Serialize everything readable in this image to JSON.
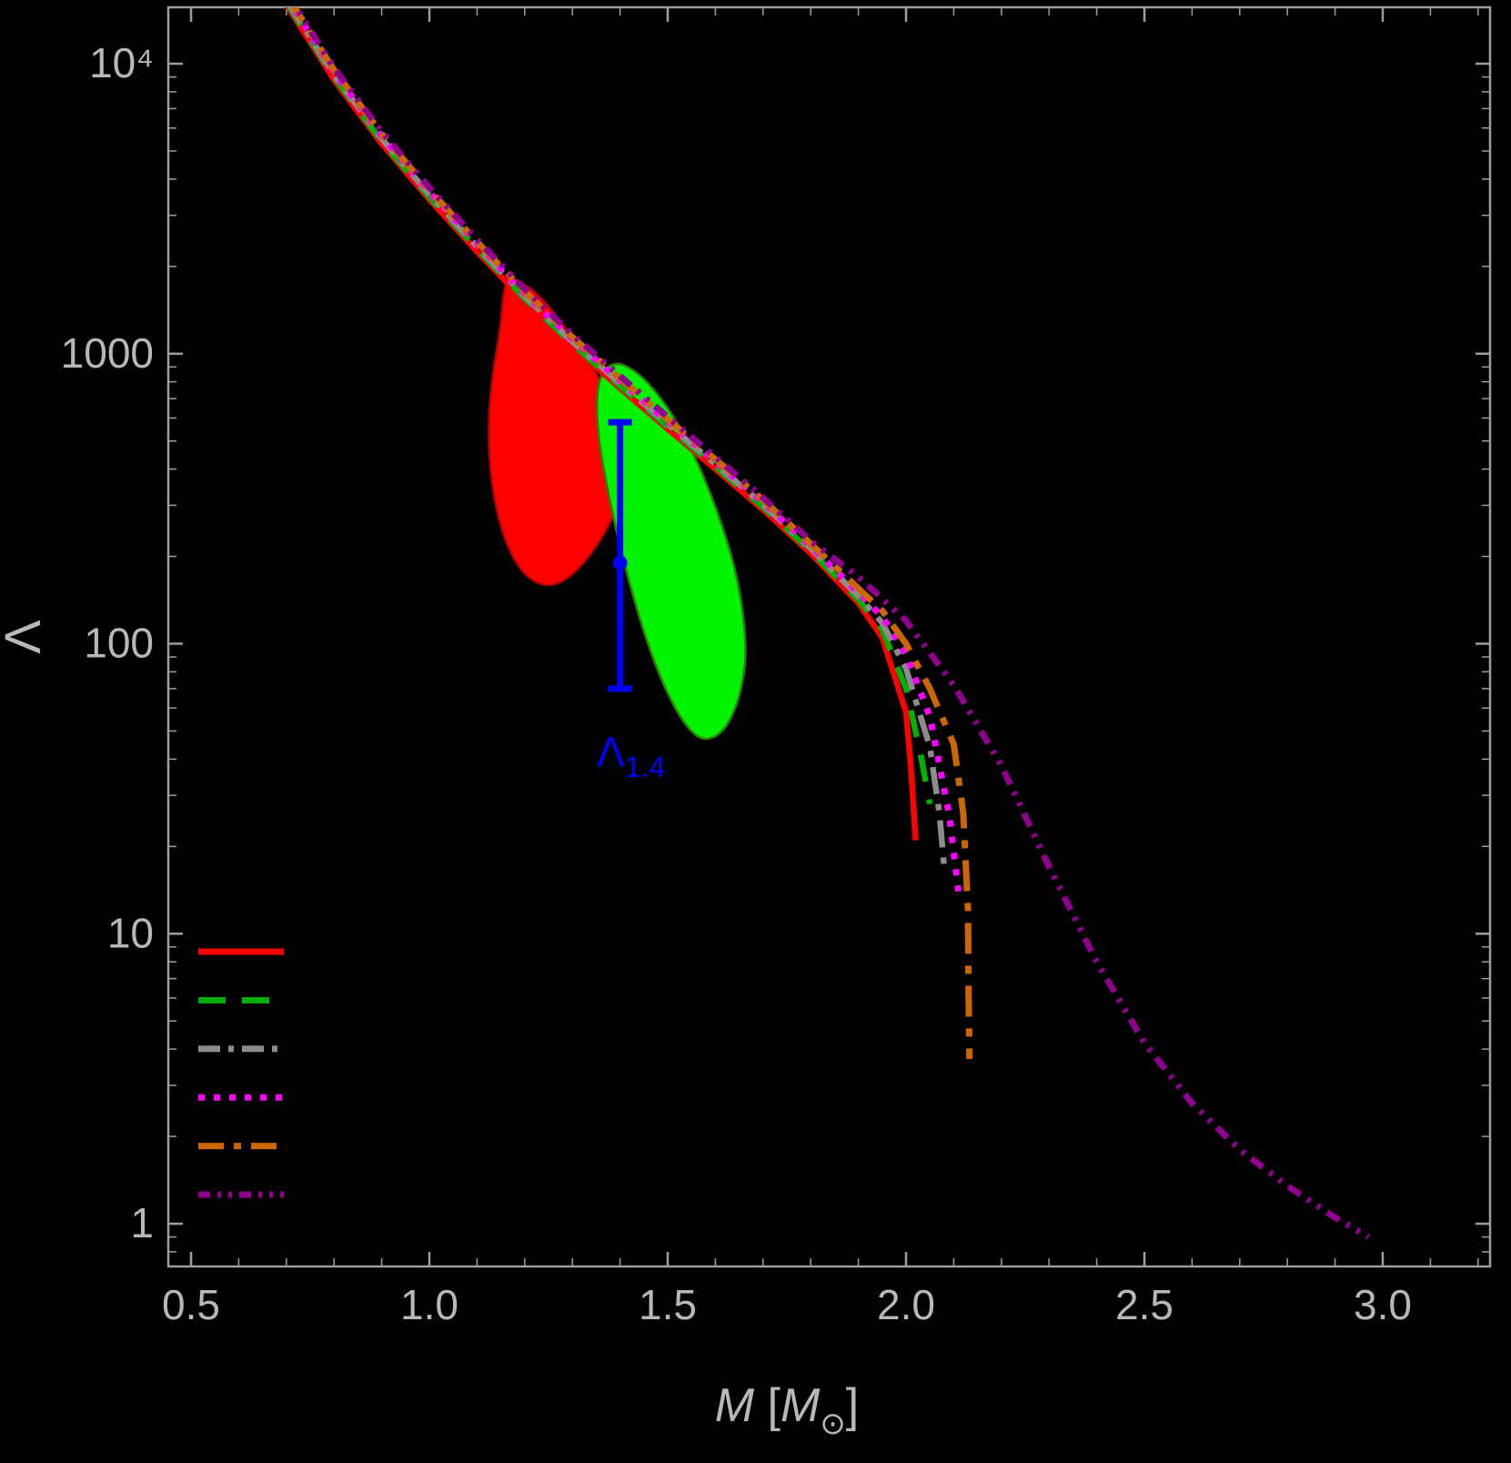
{
  "chart_data": {
    "type": "line",
    "title": "",
    "xlabel": "M [M⊙]",
    "xlabel_parts": [
      {
        "t": "M",
        "italic": true
      },
      {
        "t": " ["
      },
      {
        "t": "M",
        "italic": true
      },
      {
        "t": "⊙",
        "sub": true
      },
      {
        "t": "]"
      }
    ],
    "ylabel": "Λ",
    "xlim": [
      0.45,
      3.22
    ],
    "ylim_log": [
      0.72,
      15500
    ],
    "x_ticks": [
      0.5,
      1.0,
      1.5,
      2.0,
      2.5,
      3.0
    ],
    "x_tick_labels": [
      "0.5",
      "1.0",
      "1.5",
      "2.0",
      "2.5",
      "3.0"
    ],
    "y_ticks": [
      1,
      10,
      100,
      1000,
      10000
    ],
    "y_tick_labels": [
      "1",
      "10",
      "100",
      "1000",
      "10⁴"
    ],
    "background": "#000000",
    "axis_color": "#9e9e9e",
    "label_color": "#b8b8b8",
    "grid": false,
    "legend_position": "bottom-left",
    "series": [
      {
        "name": "red-solid",
        "color": "#ff0000",
        "dash": "",
        "width": 6.5,
        "points": [
          [
            0.7,
            16000
          ],
          [
            0.8,
            8800
          ],
          [
            0.9,
            5300
          ],
          [
            1.0,
            3400
          ],
          [
            1.1,
            2250
          ],
          [
            1.2,
            1520
          ],
          [
            1.3,
            1060
          ],
          [
            1.4,
            760
          ],
          [
            1.5,
            550
          ],
          [
            1.6,
            400
          ],
          [
            1.7,
            290
          ],
          [
            1.8,
            205
          ],
          [
            1.9,
            138
          ],
          [
            1.95,
            105
          ],
          [
            2.0,
            58
          ],
          [
            2.01,
            38
          ],
          [
            2.02,
            21
          ]
        ]
      },
      {
        "name": "green-dashed",
        "color": "#00b000",
        "dash": "30 20",
        "width": 6.5,
        "points": [
          [
            0.7,
            16300
          ],
          [
            0.8,
            9000
          ],
          [
            0.9,
            5400
          ],
          [
            1.0,
            3470
          ],
          [
            1.1,
            2300
          ],
          [
            1.2,
            1550
          ],
          [
            1.3,
            1080
          ],
          [
            1.4,
            775
          ],
          [
            1.5,
            560
          ],
          [
            1.6,
            408
          ],
          [
            1.7,
            296
          ],
          [
            1.8,
            209
          ],
          [
            1.9,
            142
          ],
          [
            1.95,
            112
          ],
          [
            2.0,
            70
          ],
          [
            2.03,
            42
          ],
          [
            2.05,
            28
          ]
        ]
      },
      {
        "name": "gray-dashdot",
        "color": "#8c8c8c",
        "dash": "30 11 7 11",
        "width": 6.5,
        "points": [
          [
            0.7,
            16600
          ],
          [
            0.8,
            9150
          ],
          [
            0.9,
            5510
          ],
          [
            1.0,
            3540
          ],
          [
            1.1,
            2340
          ],
          [
            1.2,
            1580
          ],
          [
            1.3,
            1100
          ],
          [
            1.4,
            790
          ],
          [
            1.5,
            572
          ],
          [
            1.6,
            416
          ],
          [
            1.7,
            302
          ],
          [
            1.8,
            213
          ],
          [
            1.9,
            146
          ],
          [
            1.95,
            118
          ],
          [
            2.0,
            82
          ],
          [
            2.05,
            44
          ],
          [
            2.07,
            26
          ],
          [
            2.08,
            17
          ]
        ]
      },
      {
        "name": "magenta-dotted",
        "color": "#ff00ff",
        "dash": "7 11",
        "width": 7,
        "points": [
          [
            0.7,
            17000
          ],
          [
            0.8,
            9330
          ],
          [
            0.9,
            5620
          ],
          [
            1.0,
            3600
          ],
          [
            1.1,
            2390
          ],
          [
            1.2,
            1610
          ],
          [
            1.3,
            1120
          ],
          [
            1.4,
            806
          ],
          [
            1.5,
            583
          ],
          [
            1.6,
            424
          ],
          [
            1.7,
            307
          ],
          [
            1.8,
            217
          ],
          [
            1.9,
            150
          ],
          [
            1.95,
            124
          ],
          [
            2.0,
            92
          ],
          [
            2.05,
            56
          ],
          [
            2.09,
            26
          ],
          [
            2.11,
            14
          ]
        ]
      },
      {
        "name": "orange-dashdot",
        "color": "#cc6600",
        "dash": "34 13 9 13",
        "width": 7,
        "points": [
          [
            0.7,
            17300
          ],
          [
            0.8,
            9500
          ],
          [
            0.9,
            5720
          ],
          [
            1.0,
            3670
          ],
          [
            1.1,
            2430
          ],
          [
            1.2,
            1640
          ],
          [
            1.3,
            1140
          ],
          [
            1.4,
            821
          ],
          [
            1.5,
            594
          ],
          [
            1.6,
            432
          ],
          [
            1.7,
            313
          ],
          [
            1.8,
            221
          ],
          [
            1.9,
            155
          ],
          [
            1.95,
            130
          ],
          [
            2.0,
            100
          ],
          [
            2.05,
            70
          ],
          [
            2.1,
            45
          ],
          [
            2.12,
            26
          ],
          [
            2.13,
            12
          ],
          [
            2.131,
            6.8
          ],
          [
            2.133,
            3.7
          ]
        ]
      },
      {
        "name": "purple-dashdotdot",
        "color": "#8f008f",
        "dash": "16 9 4 9 4 9",
        "width": 7,
        "points": [
          [
            0.7,
            17600
          ],
          [
            0.8,
            9680
          ],
          [
            0.9,
            5830
          ],
          [
            1.0,
            3740
          ],
          [
            1.1,
            2475
          ],
          [
            1.2,
            1670
          ],
          [
            1.3,
            1166
          ],
          [
            1.4,
            836
          ],
          [
            1.5,
            605
          ],
          [
            1.6,
            440
          ],
          [
            1.7,
            319
          ],
          [
            1.8,
            226
          ],
          [
            1.9,
            170
          ],
          [
            2.0,
            120
          ],
          [
            2.1,
            72
          ],
          [
            2.2,
            38
          ],
          [
            2.3,
            17
          ],
          [
            2.4,
            8.0
          ],
          [
            2.5,
            4.2
          ],
          [
            2.6,
            2.6
          ],
          [
            2.7,
            1.8
          ],
          [
            2.8,
            1.35
          ],
          [
            2.9,
            1.05
          ],
          [
            2.97,
            0.9
          ]
        ]
      }
    ],
    "regions": [
      {
        "name": "red-credible-region",
        "fill": "#ff0000",
        "stroke": "#c00000",
        "points": [
          [
            1.165,
            1850
          ],
          [
            1.21,
            1700
          ],
          [
            1.255,
            1430
          ],
          [
            1.3,
            1130
          ],
          [
            1.345,
            880
          ],
          [
            1.385,
            680
          ],
          [
            1.41,
            520
          ],
          [
            1.415,
            400
          ],
          [
            1.4,
            315
          ],
          [
            1.375,
            252
          ],
          [
            1.34,
            205
          ],
          [
            1.3,
            172
          ],
          [
            1.26,
            158
          ],
          [
            1.22,
            162
          ],
          [
            1.185,
            185
          ],
          [
            1.155,
            235
          ],
          [
            1.135,
            320
          ],
          [
            1.125,
            450
          ],
          [
            1.125,
            640
          ],
          [
            1.135,
            900
          ],
          [
            1.15,
            1250
          ],
          [
            1.155,
            1600
          ]
        ]
      },
      {
        "name": "green-credible-region",
        "fill": "#00f400",
        "stroke": "#2f7d00",
        "points": [
          [
            1.39,
            940
          ],
          [
            1.43,
            880
          ],
          [
            1.47,
            760
          ],
          [
            1.515,
            600
          ],
          [
            1.555,
            450
          ],
          [
            1.59,
            330
          ],
          [
            1.62,
            240
          ],
          [
            1.645,
            172
          ],
          [
            1.66,
            122
          ],
          [
            1.665,
            88
          ],
          [
            1.65,
            64
          ],
          [
            1.62,
            50
          ],
          [
            1.58,
            46
          ],
          [
            1.545,
            50
          ],
          [
            1.505,
            64
          ],
          [
            1.465,
            92
          ],
          [
            1.43,
            140
          ],
          [
            1.4,
            215
          ],
          [
            1.375,
            330
          ],
          [
            1.355,
            500
          ],
          [
            1.35,
            700
          ],
          [
            1.36,
            860
          ]
        ]
      }
    ],
    "errorbar": {
      "name": "lambda-1.4-constraint",
      "x": 1.4,
      "y": 190,
      "y_low": 70,
      "y_high": 580,
      "color": "#0000ff",
      "label": {
        "base": "Λ",
        "sub": "1.4"
      }
    },
    "legend": {
      "entries": [
        {
          "label": "",
          "color": "#ff0000",
          "dash": "",
          "width": 7
        },
        {
          "label": "",
          "color": "#00b000",
          "dash": "30 18",
          "width": 7
        },
        {
          "label": "",
          "color": "#8c8c8c",
          "dash": "24 9 6 9",
          "width": 7
        },
        {
          "label": "",
          "color": "#ff00ff",
          "dash": "7 10",
          "width": 7
        },
        {
          "label": "",
          "color": "#cc6600",
          "dash": "28 11 8 11",
          "width": 7
        },
        {
          "label": "",
          "color": "#8f008f",
          "dash": "13 8 4 8 4 8",
          "width": 7
        }
      ]
    }
  }
}
